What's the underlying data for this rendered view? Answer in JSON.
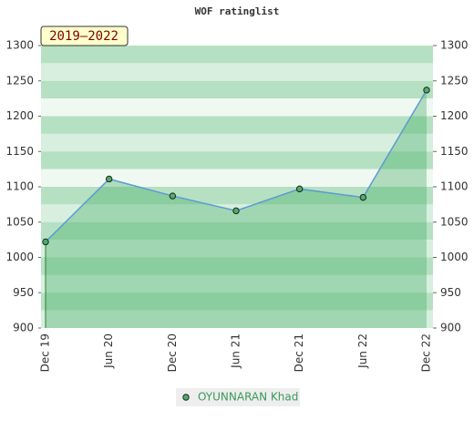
{
  "chart_data": {
    "type": "line",
    "title": "WOF ratinglist",
    "annotation": "2019–2022",
    "categories": [
      "Dec 19",
      "Jun 20",
      "Dec 20",
      "Jun 21",
      "Dec 21",
      "Jun 22",
      "Dec 22"
    ],
    "series": [
      {
        "name": "OYUNNARAN Khad",
        "color": "#5b9bd5",
        "marker_color": "#4caf6a",
        "area_color": "#3aa85c",
        "values": [
          1022,
          1111,
          1087,
          1066,
          1097,
          1085,
          1237
        ]
      }
    ],
    "ylim": [
      900,
      1300
    ],
    "yticks": [
      900,
      950,
      1000,
      1050,
      1100,
      1150,
      1200,
      1250,
      1300
    ],
    "y2lim": [
      900,
      1300
    ],
    "y2ticks": [
      900,
      950,
      1000,
      1050,
      1100,
      1150,
      1200,
      1250,
      1300
    ]
  }
}
